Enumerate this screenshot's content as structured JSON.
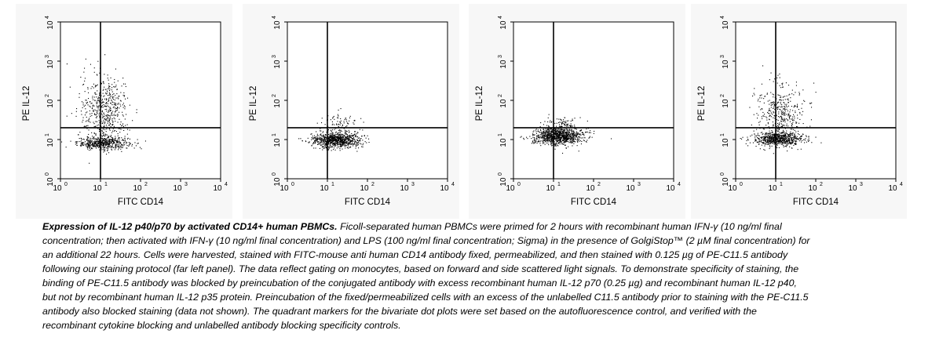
{
  "chart_data": [
    {
      "type": "scatter",
      "xlabel": "FITC CD14",
      "ylabel": "PE IL-12",
      "xscale": "log",
      "yscale": "log",
      "xlim": [
        1,
        10000
      ],
      "ylim": [
        1,
        10000
      ],
      "x_ticks": [
        "10",
        "10",
        "10",
        "10",
        "10"
      ],
      "x_tick_exp": [
        "0",
        "1",
        "2",
        "3",
        "4"
      ],
      "y_ticks": [
        "10",
        "10",
        "10",
        "10",
        "10"
      ],
      "y_tick_exp": [
        "0",
        "1",
        "2",
        "3",
        "4"
      ],
      "quadrant_x": 10,
      "quadrant_y": 20,
      "populations": [
        {
          "label": "main",
          "x_log_center": 1.05,
          "y_log_center": 0.92,
          "x_log_sd": 0.32,
          "y_log_sd": 0.08,
          "count": 500
        },
        {
          "label": "upper",
          "x_log_center": 1.1,
          "y_log_center": 1.75,
          "x_log_sd": 0.3,
          "y_log_sd": 0.45,
          "count": 550
        }
      ],
      "grid": false
    },
    {
      "type": "scatter",
      "xlabel": "FITC CD14",
      "ylabel": "PE IL-12",
      "xscale": "log",
      "yscale": "log",
      "xlim": [
        1,
        10000
      ],
      "ylim": [
        1,
        10000
      ],
      "x_ticks": [
        "10",
        "10",
        "10",
        "10",
        "10"
      ],
      "x_tick_exp": [
        "0",
        "1",
        "2",
        "3",
        "4"
      ],
      "y_ticks": [
        "10",
        "10",
        "10",
        "10",
        "10"
      ],
      "y_tick_exp": [
        "0",
        "1",
        "2",
        "3",
        "4"
      ],
      "quadrant_x": 10,
      "quadrant_y": 20,
      "populations": [
        {
          "label": "main",
          "x_log_center": 1.2,
          "y_log_center": 1.0,
          "x_log_sd": 0.3,
          "y_log_sd": 0.1,
          "count": 850
        },
        {
          "label": "upper",
          "x_log_center": 1.3,
          "y_log_center": 1.45,
          "x_log_sd": 0.22,
          "y_log_sd": 0.12,
          "count": 80
        }
      ],
      "grid": false
    },
    {
      "type": "scatter",
      "xlabel": "FITC CD14",
      "ylabel": "PE IL-12",
      "xscale": "log",
      "yscale": "log",
      "xlim": [
        1,
        10000
      ],
      "ylim": [
        1,
        10000
      ],
      "x_ticks": [
        "10",
        "10",
        "10",
        "10",
        "10"
      ],
      "x_tick_exp": [
        "0",
        "1",
        "2",
        "3",
        "4"
      ],
      "y_ticks": [
        "10",
        "10",
        "10",
        "10",
        "10"
      ],
      "y_tick_exp": [
        "0",
        "1",
        "2",
        "3",
        "4"
      ],
      "quadrant_x": 10,
      "quadrant_y": 20,
      "populations": [
        {
          "label": "main",
          "x_log_center": 1.1,
          "y_log_center": 1.1,
          "x_log_sd": 0.3,
          "y_log_sd": 0.11,
          "count": 1000
        },
        {
          "label": "upper",
          "x_log_center": 1.2,
          "y_log_center": 1.45,
          "x_log_sd": 0.2,
          "y_log_sd": 0.08,
          "count": 60
        }
      ],
      "grid": false
    },
    {
      "type": "scatter",
      "xlabel": "FITC CD14",
      "ylabel": "PE IL-12",
      "xscale": "log",
      "yscale": "log",
      "xlim": [
        1,
        10000
      ],
      "ylim": [
        1,
        10000
      ],
      "x_ticks": [
        "10",
        "10",
        "10",
        "10",
        "10"
      ],
      "x_tick_exp": [
        "0",
        "1",
        "2",
        "3",
        "4"
      ],
      "y_ticks": [
        "10",
        "10",
        "10",
        "10",
        "10"
      ],
      "y_tick_exp": [
        "0",
        "1",
        "2",
        "3",
        "4"
      ],
      "quadrant_x": 10,
      "quadrant_y": 20,
      "populations": [
        {
          "label": "main",
          "x_log_center": 1.05,
          "y_log_center": 1.02,
          "x_log_sd": 0.32,
          "y_log_sd": 0.09,
          "count": 650
        },
        {
          "label": "upper",
          "x_log_center": 1.1,
          "y_log_center": 1.65,
          "x_log_sd": 0.3,
          "y_log_sd": 0.4,
          "count": 400
        }
      ],
      "grid": false
    }
  ],
  "caption": {
    "title": "Expression of IL-12 p40/p70 by activated CD14+ human PBMCs.",
    "body": " Ficoll-separated human PBMCs were primed for 2 hours with recombinant human IFN-γ (10 ng/ml final concentration; then activated with IFN-γ (10 ng/ml final concentration) and LPS (100 ng/ml final concentration; Sigma) in the presence of GolgiStop™ (2 µM final concentration) for an additional 22 hours. Cells were harvested, stained with FITC-mouse anti human CD14 antibody fixed, permeabilized, and then stained with 0.125 µg of PE-C11.5 antibody following our staining protocol (far left panel). The data reflect gating on monocytes, based on forward and side scattered light signals. To demonstrate specificity of staining, the binding of PE-C11.5 antibody was blocked by preincubation of the conjugated antibody with excess recombinant human IL-12 p70 (0.25 µg) and recombinant human IL-12 p40, but not by recombinant human IL-12 p35 protein. Preincubation of the fixed/permeabilized cells with an excess of the unlabelled C11.5 antibody prior to staining with the PE-C11.5 antibody also blocked staining (data not shown). The quadrant markers for the bivariate dot plots were set based on the autofluorescence control, and verified with the recombinant cytokine blocking and unlabelled antibody blocking specificity controls."
  }
}
